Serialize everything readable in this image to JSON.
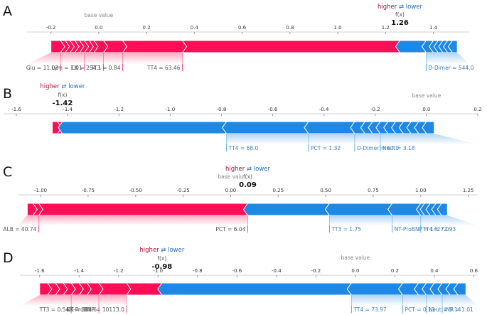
{
  "legend": {
    "higher": "higher",
    "arrow": "⇄",
    "lower": "lower"
  },
  "base_value_label": "base value",
  "fx_label": "f(x)",
  "colors": {
    "positive": "#ff0d57",
    "negative": "#1e88e5",
    "positive_text": "#a8142f",
    "negative_text": "#1f6cc4"
  },
  "chart_data": [
    {
      "type": "force",
      "panel_label": "A",
      "fx_text": "1.26",
      "fx": 1.26,
      "base_value": 0.0,
      "base_label_text": "base value",
      "xlim": [
        -0.3,
        1.55
      ],
      "ticks": [
        -0.2,
        0.0,
        0.2,
        0.4,
        0.6,
        0.8,
        1.0,
        1.2,
        1.4
      ],
      "tick_labels": [
        "-0.2",
        "0.0",
        "0.2",
        "0.4",
        "0.6",
        "0.8",
        "1.0",
        "1.2",
        "1.4"
      ],
      "positive_segments": [
        -0.2,
        -0.16,
        -0.14,
        -0.12,
        -0.1,
        -0.08,
        -0.06,
        -0.04,
        -0.02,
        0.02,
        0.1,
        0.35,
        1.26
      ],
      "negative_segments": [
        1.26,
        1.37,
        1.4,
        1.42,
        1.44,
        1.46,
        1.48,
        1.5
      ],
      "features": [
        {
          "label": "Glu = 11.02",
          "side": "pos",
          "edge": -0.16
        },
        {
          "label": "Lym = 1.01",
          "side": "pos",
          "edge": -0.06
        },
        {
          "label": "CK = 254.1",
          "side": "pos",
          "edge": 0.02
        },
        {
          "label": "TT3 = 0.84",
          "side": "pos",
          "edge": 0.1
        },
        {
          "label": "TT4 = 63.46",
          "side": "pos",
          "edge": 0.35
        },
        {
          "label": "D-Dimer = 544.0",
          "side": "neg",
          "edge": 1.37
        }
      ]
    },
    {
      "type": "force",
      "panel_label": "B",
      "fx_text": "-1.42",
      "fx": -1.42,
      "base_value": 0.0,
      "base_label_text": "base value",
      "xlim": [
        -1.65,
        0.2
      ],
      "ticks": [
        -1.6,
        -1.4,
        -1.2,
        -1.0,
        -0.8,
        -0.6,
        -0.4,
        -0.2,
        0.0,
        0.2
      ],
      "tick_labels": [
        "-1.6",
        "-1.4",
        "-1.2",
        "-1.0",
        "-0.8",
        "-0.6",
        "-0.4",
        "-0.2",
        "0.0",
        "0.2"
      ],
      "positive_segments": [
        -1.46,
        -1.44,
        -1.42
      ],
      "negative_segments": [
        -1.42,
        -0.78,
        -0.46,
        -0.28,
        -0.24,
        -0.21,
        -0.18,
        -0.15,
        -0.12,
        -0.09,
        -0.06,
        -0.03,
        0.0,
        0.03
      ],
      "features": [
        {
          "label": "TT4 = 68.0",
          "side": "neg",
          "edge": -0.78
        },
        {
          "label": "PCT = 1.32",
          "side": "neg",
          "edge": -0.46
        },
        {
          "label": "D-Dimer = 67.0",
          "side": "neg",
          "edge": -0.28
        },
        {
          "label": "Neut = 3.18",
          "side": "neg",
          "edge": -0.18
        }
      ]
    },
    {
      "type": "force",
      "panel_label": "C",
      "fx_text": "0.09",
      "fx": 0.09,
      "base_value": 0.0,
      "base_label_text": "base valu",
      "xlim": [
        -1.12,
        1.3
      ],
      "ticks": [
        -1.0,
        -0.75,
        -0.5,
        -0.25,
        0.0,
        0.25,
        0.5,
        0.75,
        1.0,
        1.25
      ],
      "tick_labels": [
        "-1.00",
        "-0.75",
        "-0.50",
        "-0.25",
        "0.00",
        "0.25",
        "0.50",
        "0.75",
        "1.00",
        "1.25"
      ],
      "positive_segments": [
        -1.07,
        -1.04,
        -1.01,
        0.09
      ],
      "negative_segments": [
        0.09,
        0.52,
        0.85,
        1.0,
        1.02,
        1.05,
        1.08,
        1.11,
        1.14
      ],
      "features": [
        {
          "label": "ALB = 40.74",
          "side": "pos",
          "edge": -1.01
        },
        {
          "label": "PCT = 6.04",
          "side": "pos",
          "edge": 0.09
        },
        {
          "label": "TT3 = 1.75",
          "side": "neg",
          "edge": 0.52
        },
        {
          "label": "NT-ProBNP = 1427.0",
          "side": "neg",
          "edge": 0.85
        },
        {
          "label": "TT4 = 72.93",
          "side": "neg",
          "edge": 1.0
        }
      ]
    },
    {
      "type": "force",
      "panel_label": "D",
      "fx_text": "-0.98",
      "fx": -0.98,
      "base_value": 0.0,
      "base_label_text": "base value",
      "xlim": [
        -1.7,
        0.62
      ],
      "ticks": [
        -1.6,
        -1.4,
        -1.2,
        -1.0,
        -0.8,
        -0.6,
        -0.4,
        -0.2,
        0.0,
        0.2,
        0.4,
        0.6
      ],
      "tick_labels": [
        "-1.6",
        "-1.4",
        "-1.2",
        "-1.0",
        "-0.8",
        "-0.6",
        "-0.4",
        "-0.2",
        "0.0",
        "0.2",
        "0.4",
        "0.6"
      ],
      "positive_segments": [
        -1.6,
        -1.56,
        -1.52,
        -1.48,
        -1.44,
        -1.4,
        -1.36,
        -1.3,
        -1.16,
        -0.98
      ],
      "negative_segments": [
        -0.98,
        -0.02,
        0.24,
        0.32,
        0.36,
        0.4,
        0.44,
        0.48,
        0.52,
        0.56
      ],
      "features": [
        {
          "label": "TT3 = 0.54",
          "side": "pos",
          "edge": -1.44
        },
        {
          "label": "CK = 388.6",
          "side": "pos",
          "edge": -1.3
        },
        {
          "label": "NT-ProBNP = 10113.0",
          "side": "pos",
          "edge": -1.16
        },
        {
          "label": "TT4 = 73.97",
          "side": "neg",
          "edge": -0.02
        },
        {
          "label": "PCT = 0.13",
          "side": "neg",
          "edge": 0.24
        },
        {
          "label": "Neut = 5.14",
          "side": "neg",
          "edge": 0.36
        },
        {
          "label": "INR = 1.01",
          "side": "neg",
          "edge": 0.44
        }
      ]
    }
  ]
}
